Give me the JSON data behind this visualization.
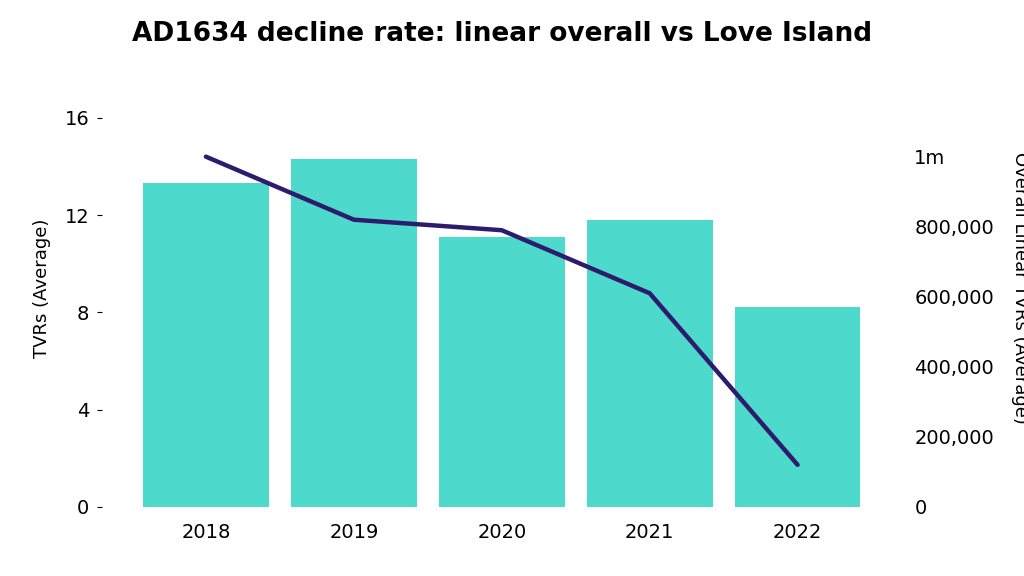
{
  "title": "AD1634 decline rate: linear overall vs Love Island",
  "years": [
    2018,
    2019,
    2020,
    2021,
    2022
  ],
  "bar_values": [
    13.3,
    14.3,
    11.1,
    11.8,
    8.2
  ],
  "line_values": [
    1000000,
    820000,
    790000,
    610000,
    120000
  ],
  "bar_color": "#4DD9CC",
  "line_color": "#2D1B6E",
  "left_ylabel": "TVRs (Average)",
  "right_ylabel": "Overall Linear TVRs (Average)",
  "left_ylim": [
    0,
    18
  ],
  "left_yticks": [
    0,
    4,
    8,
    12,
    16
  ],
  "right_ylim": [
    0,
    1250000
  ],
  "right_yticks": [
    0,
    200000,
    400000,
    600000,
    800000,
    1000000
  ],
  "right_yticklabels": [
    "0",
    "200,000",
    "400,000",
    "600,000",
    "800,000",
    "1m"
  ],
  "background_color": "#FFFFFF",
  "title_fontsize": 19,
  "axis_fontsize": 13,
  "tick_fontsize": 14,
  "line_width": 3.2,
  "bar_width": 0.85
}
